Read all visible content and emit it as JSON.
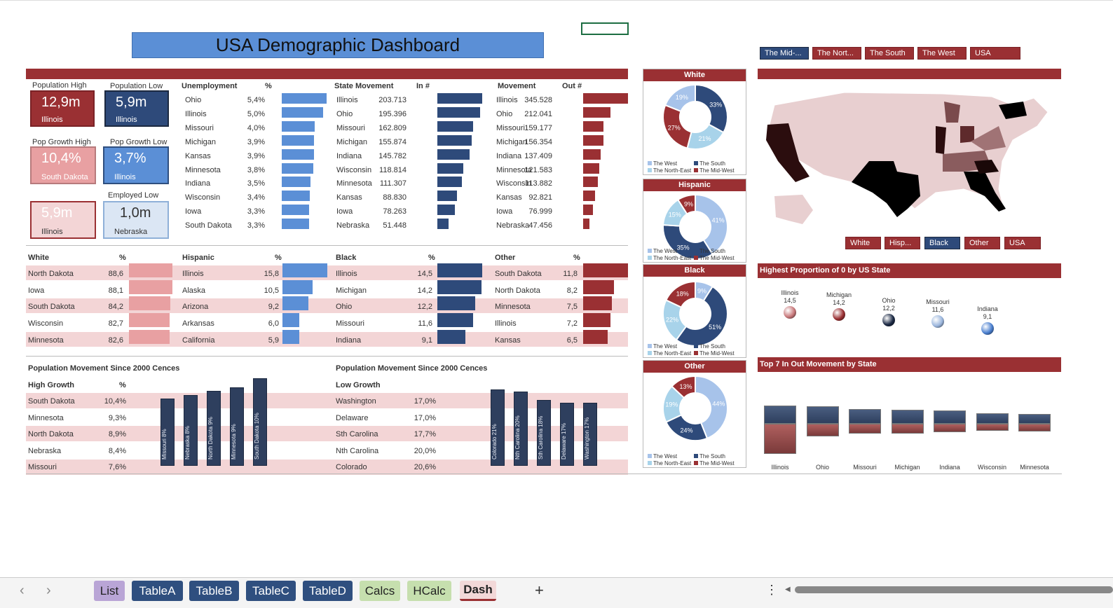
{
  "title": "USA Demographic Dashboard",
  "colors": {
    "red": "#9a3033",
    "navy": "#2e4a7a",
    "blue": "#5b8fd6",
    "pink": "#e8a0a2",
    "lightpink": "#f3d5d6",
    "lightblue": "#a8cfe8"
  },
  "region_slicer": [
    "The Mid-...",
    "The Nort...",
    "The South",
    "The West",
    "USA"
  ],
  "map_slicer": [
    "White",
    "Hisp...",
    "Black",
    "Other",
    "USA"
  ],
  "kpis": {
    "pop_high": {
      "label": "Population High",
      "value": "12,9m",
      "state": "Illinois"
    },
    "pop_low": {
      "label": "Population Low",
      "value": "5,9m",
      "state": "Illinois"
    },
    "growth_high": {
      "label": "Pop Growth High",
      "value": "10,4%",
      "state": "South Dakota"
    },
    "growth_low": {
      "label": "Pop Growth Low",
      "value": "3,7%",
      "state": "Illinois"
    },
    "unemp_high": {
      "label": "",
      "value": "5,9m",
      "state": "Illinois"
    },
    "employed_low": {
      "label": "Employed Low",
      "value": "1,0m",
      "state": "Nebraska"
    }
  },
  "unemployment": {
    "h1": "Unemployment",
    "h2": "%",
    "rows": [
      [
        "Ohio",
        "5,4%",
        5.4
      ],
      [
        "Illinois",
        "5,0%",
        5.0
      ],
      [
        "Missouri",
        "4,0%",
        4.0
      ],
      [
        "Michigan",
        "3,9%",
        3.9
      ],
      [
        "Kansas",
        "3,9%",
        3.9
      ],
      [
        "Minnesota",
        "3,8%",
        3.8
      ],
      [
        "Indiana",
        "3,5%",
        3.5
      ],
      [
        "Wisconsin",
        "3,4%",
        3.4
      ],
      [
        "Iowa",
        "3,3%",
        3.3
      ],
      [
        "South Dakota",
        "3,3%",
        3.3
      ]
    ]
  },
  "state_in": {
    "h1": "State Movement",
    "h2": "In #",
    "rows": [
      [
        "Illinois",
        "203.713",
        203713
      ],
      [
        "Ohio",
        "195.396",
        195396
      ],
      [
        "Missouri",
        "162.809",
        162809
      ],
      [
        "Michigan",
        "155.874",
        155874
      ],
      [
        "Indiana",
        "145.782",
        145782
      ],
      [
        "Wisconsin",
        "118.814",
        118814
      ],
      [
        "Minnesota",
        "111.307",
        111307
      ],
      [
        "Kansas",
        "88.830",
        88830
      ],
      [
        "Iowa",
        "78.263",
        78263
      ],
      [
        "Nebraska",
        "51.448",
        51448
      ]
    ]
  },
  "state_out": {
    "h1": "Movement",
    "h2": "Out #",
    "rows": [
      [
        "Illinois",
        "345.528",
        345528
      ],
      [
        "Ohio",
        "212.041",
        212041
      ],
      [
        "Missouri",
        "159.177",
        159177
      ],
      [
        "Michigan",
        "156.354",
        156354
      ],
      [
        "Indiana",
        "137.409",
        137409
      ],
      [
        "Minnesota",
        "121.583",
        121583
      ],
      [
        "Wisconsin",
        "113.882",
        113882
      ],
      [
        "Kansas",
        "92.821",
        92821
      ],
      [
        "Iowa",
        "76.999",
        76999
      ],
      [
        "Nebraska",
        "47.456",
        47456
      ]
    ]
  },
  "white": {
    "h1": "White",
    "h2": "%",
    "rows": [
      [
        "North Dakota",
        "88,6",
        88.6
      ],
      [
        "Iowa",
        "88,1",
        88.1
      ],
      [
        "South Dakota",
        "84,2",
        84.2
      ],
      [
        "Wisconsin",
        "82,7",
        82.7
      ],
      [
        "Minnesota",
        "82,6",
        82.6
      ]
    ]
  },
  "hispanic": {
    "h1": "Hispanic",
    "h2": "%",
    "rows": [
      [
        "Illinois",
        "15,8",
        15.8
      ],
      [
        "Alaska",
        "10,5",
        10.5
      ],
      [
        "Arizona",
        "9,2",
        9.2
      ],
      [
        "Arkansas",
        "6,0",
        6.0
      ],
      [
        "California",
        "5,9",
        5.9
      ]
    ]
  },
  "black": {
    "h1": "Black",
    "h2": "%",
    "rows": [
      [
        "Illinois",
        "14,5",
        14.5
      ],
      [
        "Michigan",
        "14,2",
        14.2
      ],
      [
        "Ohio",
        "12,2",
        12.2
      ],
      [
        "Missouri",
        "11,6",
        11.6
      ],
      [
        "Indiana",
        "9,1",
        9.1
      ]
    ]
  },
  "other": {
    "h1": "Other",
    "h2": "%",
    "rows": [
      [
        "South Dakota",
        "11,8",
        11.8
      ],
      [
        "North Dakota",
        "8,2",
        8.2
      ],
      [
        "Minnesota",
        "7,5",
        7.5
      ],
      [
        "Illinois",
        "7,2",
        7.2
      ],
      [
        "Kansas",
        "6,5",
        6.5
      ]
    ]
  },
  "movement_high": {
    "title": "Population Movement Since 2000 Cences",
    "h1": "High Growth",
    "h2": "%",
    "rows": [
      [
        "South Dakota",
        "10,4%"
      ],
      [
        "Minnesota",
        "9,3%"
      ],
      [
        "North Dakota",
        "8,9%"
      ],
      [
        "Nebraska",
        "8,4%"
      ],
      [
        "Missouri",
        "7,6%"
      ]
    ],
    "bars": [
      [
        "Missouri 8%",
        8
      ],
      [
        "Nebraska 8%",
        8.4
      ],
      [
        "North Dakota 9%",
        8.9
      ],
      [
        "Minnesota 9%",
        9.3
      ],
      [
        "South Dakota 10%",
        10.4
      ]
    ]
  },
  "movement_low": {
    "title": "Population Movement Since 2000 Cences",
    "h1": "Low Growth",
    "rows": [
      [
        "Washington",
        "17,0%"
      ],
      [
        "Delaware",
        "17,0%"
      ],
      [
        "Sth Carolina",
        "17,7%"
      ],
      [
        "Nth Carolina",
        "20,0%"
      ],
      [
        "Colorado",
        "20,6%"
      ]
    ],
    "bars": [
      [
        "Colorado 21%",
        20.6
      ],
      [
        "Nth Carolina 20%",
        20.0
      ],
      [
        "Sth Carolina 18%",
        17.7
      ],
      [
        "Delaware 17%",
        17.0
      ],
      [
        "Washington 17%",
        17.0
      ]
    ]
  },
  "donuts": [
    {
      "title": "White",
      "slices": [
        {
          "name": "The South",
          "pct": 33,
          "color": "#2e4a7a"
        },
        {
          "name": "The North-East",
          "pct": 21,
          "color": "#a8d3ea"
        },
        {
          "name": "The Mid-West",
          "pct": 27,
          "color": "#9a3033"
        },
        {
          "name": "The West",
          "pct": 19,
          "color": "#a7c3ea"
        }
      ],
      "labels": [
        "19%",
        "33%",
        "21%",
        "27%"
      ]
    },
    {
      "title": "Hispanic",
      "slices": [
        {
          "name": "The West",
          "pct": 41,
          "color": "#a7c3ea"
        },
        {
          "name": "The South",
          "pct": 35,
          "color": "#2e4a7a"
        },
        {
          "name": "The North-East",
          "pct": 15,
          "color": "#a8d3ea"
        },
        {
          "name": "The Mid-West",
          "pct": 9,
          "color": "#9a3033"
        }
      ],
      "labels": [
        "41%",
        "35%",
        "15%",
        "9%"
      ]
    },
    {
      "title": "Black",
      "slices": [
        {
          "name": "The West",
          "pct": 9,
          "color": "#a7c3ea"
        },
        {
          "name": "The South",
          "pct": 51,
          "color": "#2e4a7a"
        },
        {
          "name": "The North-East",
          "pct": 22,
          "color": "#a8d3ea"
        },
        {
          "name": "The Mid-West",
          "pct": 18,
          "color": "#9a3033"
        }
      ],
      "labels": [
        "9%",
        "51%",
        "22%",
        "18%"
      ]
    },
    {
      "title": "Other",
      "slices": [
        {
          "name": "The West",
          "pct": 44,
          "color": "#a7c3ea"
        },
        {
          "name": "The South",
          "pct": 24,
          "color": "#2e4a7a"
        },
        {
          "name": "The North-East",
          "pct": 19,
          "color": "#a8d3ea"
        },
        {
          "name": "The Mid-West",
          "pct": 13,
          "color": "#9a3033"
        }
      ],
      "labels": [
        "44%",
        "24%",
        "19%",
        "13%"
      ]
    }
  ],
  "legend_names": [
    "The West",
    "The South",
    "The North-East",
    "The Mid-West"
  ],
  "bubbles": {
    "title": "Highest Proportion of 0 by US State",
    "items": [
      [
        "Illinois",
        "14,5",
        "#c8787a"
      ],
      [
        "Michigan",
        "14,2",
        "#9a3033"
      ],
      [
        "Ohio",
        "12,2",
        "#1c2a45"
      ],
      [
        "Missouri",
        "11,6",
        "#9bb6dd"
      ],
      [
        "Indiana",
        "9,1",
        "#4a7fcf"
      ]
    ]
  },
  "stacked": {
    "title": "Top 7 In Out Movement by State",
    "states": [
      "Illinois",
      "Ohio",
      "Missouri",
      "Michigan",
      "Indiana",
      "Wisconsin",
      "Minnesota"
    ],
    "in": [
      204,
      195,
      163,
      156,
      146,
      119,
      111
    ],
    "out": [
      346,
      212,
      159,
      156,
      137,
      114,
      122
    ]
  },
  "sheet_tabs": [
    [
      "List",
      "#b9a5d6"
    ],
    [
      "TableA",
      "#2f4f7f"
    ],
    [
      "TableB",
      "#2f4f7f"
    ],
    [
      "TableC",
      "#2f4f7f"
    ],
    [
      "TableD",
      "#2f4f7f"
    ],
    [
      "Calcs",
      "#c6dfae"
    ],
    [
      "HCalc",
      "#c6dfae"
    ],
    [
      "Dash",
      "#f2d8d8"
    ]
  ],
  "nav": {
    "prev": "‹",
    "next": "›",
    "add": "+",
    "more": "⋮"
  }
}
